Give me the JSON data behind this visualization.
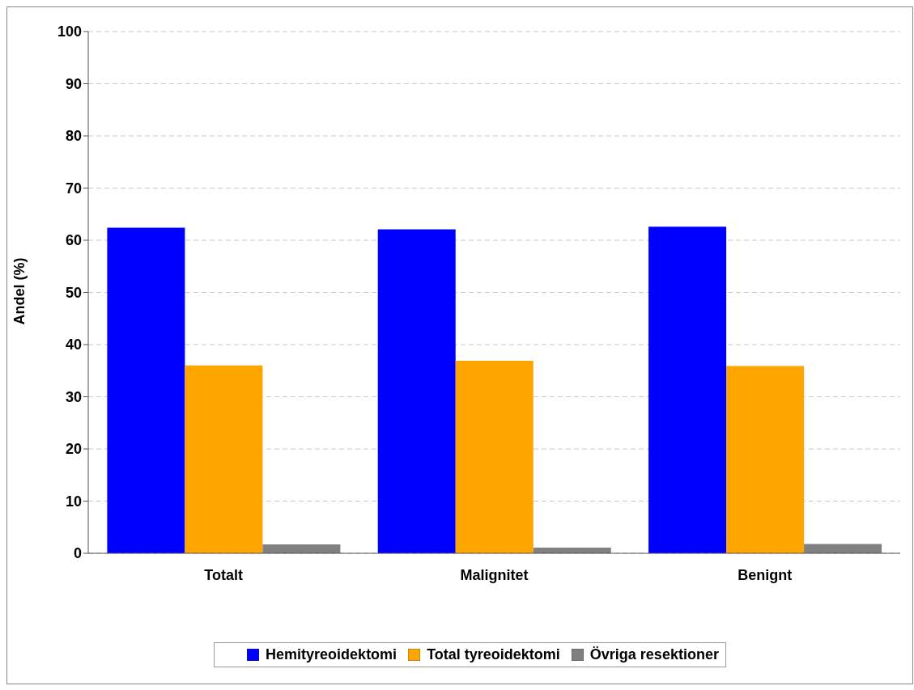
{
  "chart_data": {
    "type": "bar",
    "ylabel": "Andel (%)",
    "categories": [
      "Totalt",
      "Malignitet",
      "Benignt"
    ],
    "series": [
      {
        "name": "Hemityreoidektomi",
        "color": "#0000ff",
        "values": [
          62.4,
          62.1,
          62.6
        ]
      },
      {
        "name": "Total tyreoidektomi",
        "color": "#ffa500",
        "values": [
          36.0,
          36.9,
          35.9
        ]
      },
      {
        "name": "Övriga resektioner",
        "color": "#808080",
        "values": [
          1.7,
          1.1,
          1.8
        ]
      }
    ],
    "ylim": [
      0,
      100
    ],
    "yticks": [
      0,
      10,
      20,
      30,
      40,
      50,
      60,
      70,
      80,
      90,
      100
    ],
    "grid": "y",
    "legend": "bottom"
  }
}
